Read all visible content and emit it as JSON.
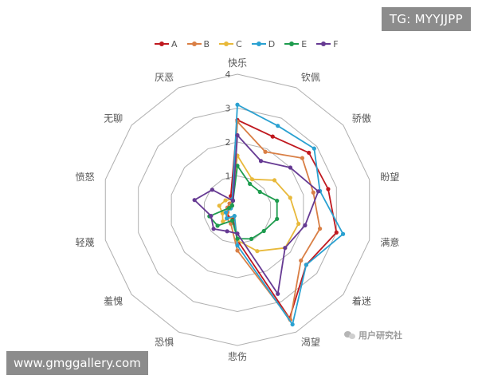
{
  "watermarks": {
    "top_right": "TG: MYYJJPP",
    "bottom_left": "www.gmggallery.com",
    "brand": "用户研究社"
  },
  "chart_data": {
    "type": "radar",
    "title": "",
    "categories": [
      "快乐",
      "钦佩",
      "骄傲",
      "盼望",
      "满意",
      "着迷",
      "渴望",
      "悲伤",
      "恐惧",
      "羞愧",
      "轻蔑",
      "愤怒",
      "无聊",
      "厌恶"
    ],
    "rlim": [
      0,
      4
    ],
    "rticks": [
      1,
      2,
      3,
      4
    ],
    "grid": true,
    "grid_color": "#b0b0b0",
    "legend_position": "top",
    "series": [
      {
        "name": "A",
        "color": "#c0191f",
        "values": [
          2.65,
          2.4,
          2.7,
          2.75,
          3.0,
          2.6,
          3.55,
          0.9,
          0.3,
          0.35,
          0.3,
          0.3,
          0.2,
          0.45
        ]
      },
      {
        "name": "B",
        "color": "#d97f45",
        "values": [
          2.6,
          1.9,
          2.45,
          2.3,
          2.5,
          2.4,
          3.6,
          1.2,
          0.45,
          0.4,
          0.3,
          0.3,
          0.3,
          0.3
        ]
      },
      {
        "name": "C",
        "color": "#e8b93b",
        "values": [
          1.6,
          1.0,
          1.4,
          1.6,
          1.85,
          1.8,
          1.35,
          0.9,
          0.2,
          0.55,
          0.45,
          0.55,
          0.45,
          0.35
        ]
      },
      {
        "name": "D",
        "color": "#2aa1d1",
        "values": [
          3.1,
          2.75,
          2.9,
          2.5,
          3.2,
          2.6,
          3.75,
          1.05,
          0.2,
          0.4,
          0.35,
          0.2,
          0.2,
          0.35
        ]
      },
      {
        "name": "E",
        "color": "#1e9c4e",
        "values": [
          1.3,
          0.85,
          0.85,
          1.2,
          1.2,
          1.0,
          0.95,
          0.85,
          0.35,
          0.75,
          0.85,
          0.25,
          0.2,
          0.3
        ]
      },
      {
        "name": "F",
        "color": "#663a93",
        "values": [
          2.2,
          1.6,
          2.0,
          2.45,
          2.05,
          1.8,
          2.75,
          0.7,
          0.7,
          0.9,
          0.8,
          1.3,
          0.95,
          0.3
        ]
      }
    ]
  }
}
